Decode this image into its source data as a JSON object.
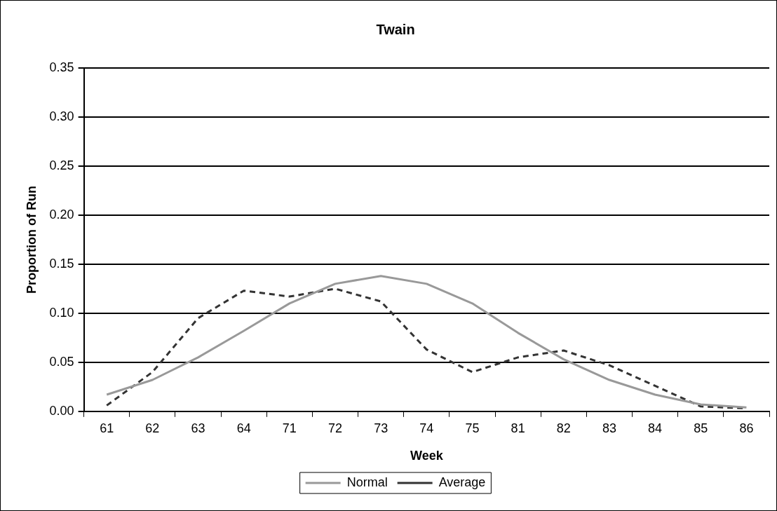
{
  "chart_data": {
    "type": "line",
    "title": "Twain",
    "xlabel": "Week",
    "ylabel": "Proportion of Run",
    "categories": [
      "61",
      "62",
      "63",
      "64",
      "71",
      "72",
      "73",
      "74",
      "75",
      "81",
      "82",
      "83",
      "84",
      "85",
      "86"
    ],
    "series": [
      {
        "name": "Normal",
        "color": "#999999",
        "line_style": "solid",
        "values": [
          0.017,
          0.032,
          0.055,
          0.082,
          0.11,
          0.13,
          0.138,
          0.13,
          0.11,
          0.08,
          0.053,
          0.032,
          0.017,
          0.007,
          0.004
        ]
      },
      {
        "name": "Average",
        "color": "#333333",
        "line_style": "dashed",
        "values": [
          0.006,
          0.04,
          0.095,
          0.123,
          0.117,
          0.125,
          0.112,
          0.063,
          0.04,
          0.055,
          0.062,
          0.047,
          0.026,
          0.005,
          0.003
        ]
      }
    ],
    "ylim": [
      0,
      0.35
    ],
    "yticks": [
      {
        "value": 0,
        "label": "0.00"
      },
      {
        "value": 0.05,
        "label": "0.05"
      },
      {
        "value": 0.1,
        "label": "0.10"
      },
      {
        "value": 0.15,
        "label": "0.15"
      },
      {
        "value": 0.2,
        "label": "0.20"
      },
      {
        "value": 0.25,
        "label": "0.25"
      },
      {
        "value": 0.3,
        "label": "0.30"
      },
      {
        "value": 0.35,
        "label": "0.35"
      }
    ],
    "grid": "y",
    "legend": "bottom",
    "marker": "none"
  }
}
